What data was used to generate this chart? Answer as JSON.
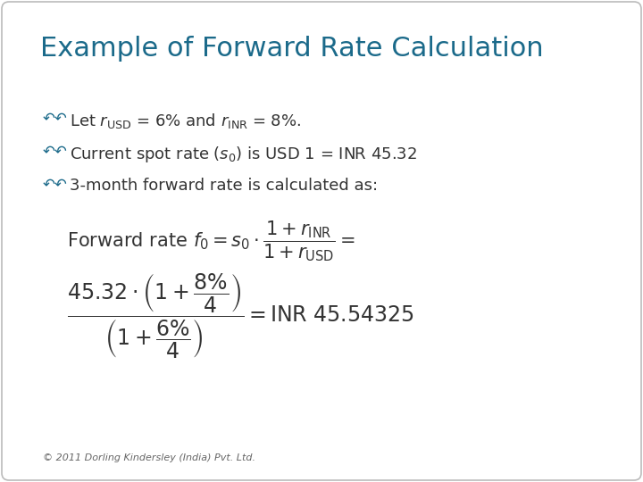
{
  "title": "Example of Forward Rate Calculation",
  "title_color": "#1B6A8A",
  "title_fontsize": 22,
  "bg_color": "#FFFFFF",
  "border_color": "#BBBBBB",
  "bullet_color": "#1B6A8A",
  "bullet_lines": [
    "Let $r_{\\mathrm{USD}}$ = 6% and $r_{\\mathrm{INR}}$ = 8%.",
    "Current spot rate ($s_0$) is USD 1 = INR 45.32",
    "3-month forward rate is calculated as:"
  ],
  "formula1": "$\\mathrm{Forward\\ rate}\\ f_0 = s_0 \\cdot \\dfrac{1 + r_{\\mathrm{INR}}}{1 + r_{\\mathrm{USD}}} =$",
  "formula2": "$\\dfrac{45.32 \\cdot \\left(1 + \\dfrac{8\\%}{4}\\right)}{\\left(1 + \\dfrac{6\\%}{4}\\right)} = \\mathrm{INR\\ 45.54325}$",
  "footer": "© 2011 Dorling Kindersley (India) Pvt. Ltd.",
  "footer_color": "#666666",
  "footer_fontsize": 8,
  "text_color": "#333333",
  "bullet_fontsize": 13,
  "formula1_fontsize": 15,
  "formula2_fontsize": 17
}
